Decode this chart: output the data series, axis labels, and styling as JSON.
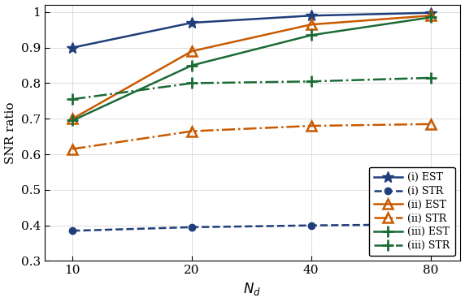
{
  "x": [
    10,
    20,
    40,
    80
  ],
  "series": {
    "i_EST": [
      0.9,
      0.97,
      0.99,
      0.998
    ],
    "i_STR": [
      0.385,
      0.395,
      0.4,
      0.403
    ],
    "ii_EST": [
      0.7,
      0.89,
      0.965,
      0.99
    ],
    "ii_STR": [
      0.615,
      0.665,
      0.68,
      0.685
    ],
    "iii_EST": [
      0.695,
      0.85,
      0.935,
      0.985
    ],
    "iii_STR": [
      0.755,
      0.8,
      0.805,
      0.815
    ]
  },
  "colors": {
    "i": "#1f3e7a",
    "ii": "#c85a00",
    "iii": "#1a6b35"
  },
  "ylabel": "SNR ratio",
  "xlabel": "$N_d$",
  "ylim": [
    0.3,
    1.02
  ],
  "yticks": [
    0.3,
    0.4,
    0.5,
    0.6,
    0.7,
    0.8,
    0.9,
    1.0
  ],
  "xticks": [
    10,
    20,
    40,
    80
  ],
  "legend_labels": [
    "(i) EST",
    "(i) STR",
    "(ii) EST",
    "(ii) STR",
    "(iii) EST",
    "(iii) STR"
  ]
}
